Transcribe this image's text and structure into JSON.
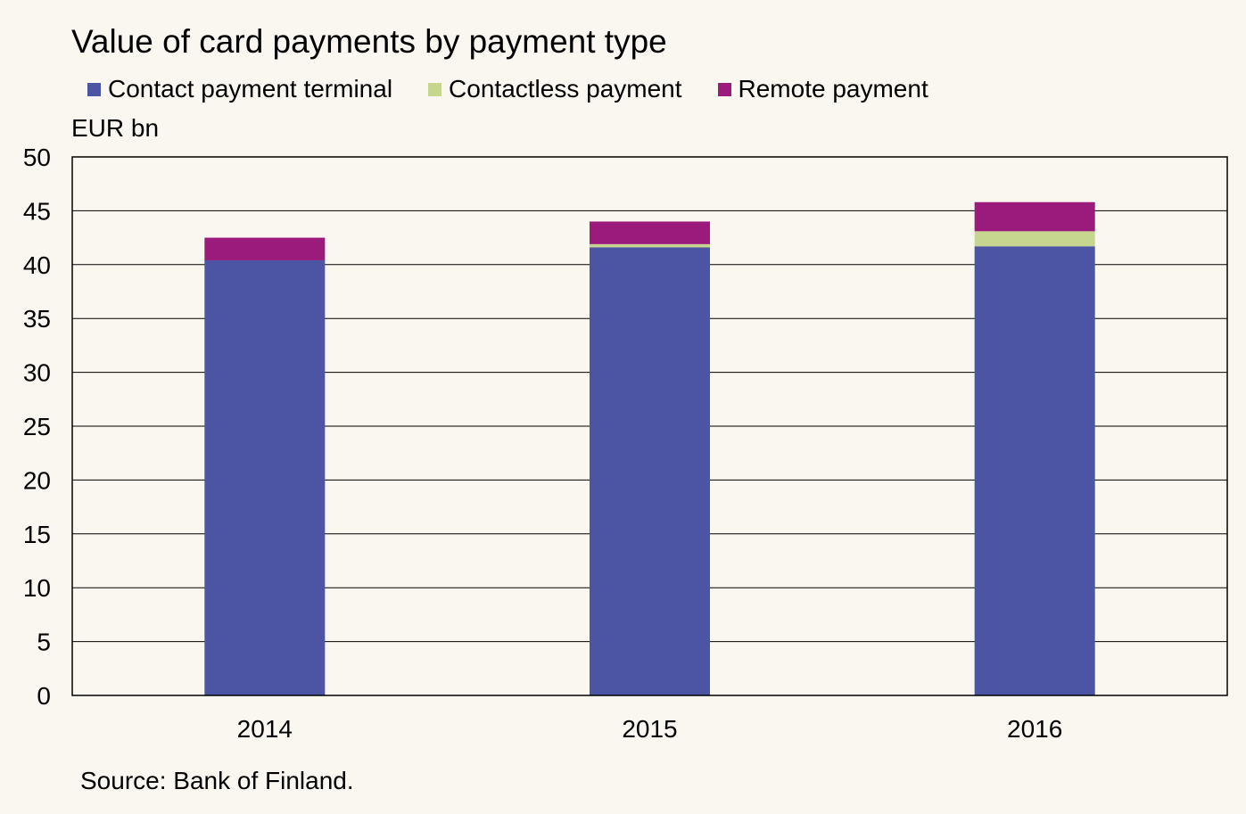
{
  "chart_data": {
    "type": "bar",
    "stacked": true,
    "title": "Value of card payments by payment type",
    "ylabel": "EUR bn",
    "xlabel": "",
    "categories": [
      "2014",
      "2015",
      "2016"
    ],
    "ylim": [
      0,
      50
    ],
    "yticks": [
      0,
      5,
      10,
      15,
      20,
      25,
      30,
      35,
      40,
      45,
      50
    ],
    "grid": true,
    "legend_position": "top",
    "series": [
      {
        "name": "Contact payment terminal",
        "color": "#4b55a3",
        "values": [
          40.4,
          41.6,
          41.7
        ]
      },
      {
        "name": "Contactless payment",
        "color": "#c6d68f",
        "values": [
          0.0,
          0.3,
          1.4
        ]
      },
      {
        "name": "Remote payment",
        "color": "#9b1b7c",
        "values": [
          2.1,
          2.1,
          2.7
        ]
      }
    ],
    "source": "Source: Bank of Finland."
  }
}
